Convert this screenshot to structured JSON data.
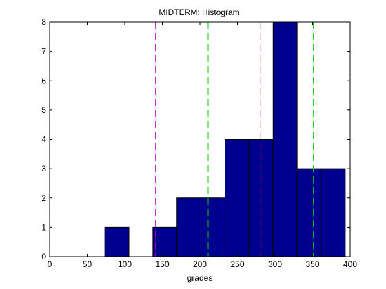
{
  "chart_data": {
    "type": "bar",
    "title": "MIDTERM: Histogram",
    "xlabel": "grades",
    "ylabel": "",
    "xlim": [
      0,
      400
    ],
    "ylim": [
      0,
      8
    ],
    "xticks": [
      0,
      50,
      100,
      150,
      200,
      250,
      300,
      350,
      400
    ],
    "yticks": [
      0,
      1,
      2,
      3,
      4,
      5,
      6,
      7,
      8
    ],
    "grid": false,
    "legend": "none",
    "bar_color": "#00008f",
    "bins": [
      {
        "start": 73.5,
        "end": 105.5,
        "count": 1
      },
      {
        "start": 105.5,
        "end": 137.5,
        "count": 0
      },
      {
        "start": 137.5,
        "end": 169.5,
        "count": 1
      },
      {
        "start": 169.5,
        "end": 201.5,
        "count": 2
      },
      {
        "start": 201.5,
        "end": 233.5,
        "count": 2
      },
      {
        "start": 233.5,
        "end": 265.5,
        "count": 4
      },
      {
        "start": 265.5,
        "end": 297.5,
        "count": 4
      },
      {
        "start": 297.5,
        "end": 329.5,
        "count": 8
      },
      {
        "start": 329.5,
        "end": 361.5,
        "count": 3
      },
      {
        "start": 361.5,
        "end": 393.5,
        "count": 3
      }
    ],
    "reference_lines": [
      {
        "x": 141,
        "color": "#bf00bf",
        "style": "dashed"
      },
      {
        "x": 211,
        "color": "#00cc00",
        "style": "dashed"
      },
      {
        "x": 281,
        "color": "#ff0000",
        "style": "dashed"
      },
      {
        "x": 351,
        "color": "#00cc00",
        "style": "dashed"
      }
    ]
  }
}
